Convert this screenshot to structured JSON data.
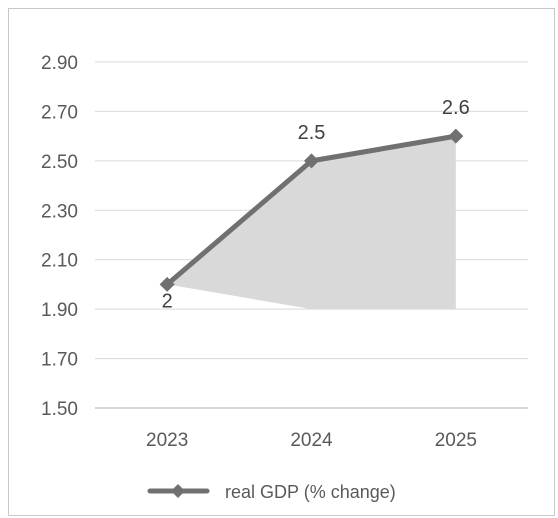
{
  "chart_data": {
    "type": "line",
    "categories": [
      "2023",
      "2024",
      "2025"
    ],
    "series": [
      {
        "name": "real GDP (% change)",
        "values": [
          2,
          2.5,
          2.6
        ],
        "data_labels": [
          "2",
          "2.5",
          "2.6"
        ]
      }
    ],
    "y_ticks": [
      "2.90",
      "2.70",
      "2.50",
      "2.30",
      "2.10",
      "1.90",
      "1.70",
      "1.50"
    ],
    "ylim": [
      1.5,
      2.9
    ],
    "shaded_area": {
      "x": [
        "2023",
        "2024",
        "2025"
      ],
      "lower": [
        2,
        1.9,
        1.9
      ],
      "upper": [
        2,
        2.5,
        2.6
      ]
    },
    "grid": true,
    "legend": "bottom",
    "colors": {
      "line": "#707070",
      "area": "#d9d9d9",
      "grid": "#d9d9d9",
      "axis": "#bfbfbf"
    }
  }
}
